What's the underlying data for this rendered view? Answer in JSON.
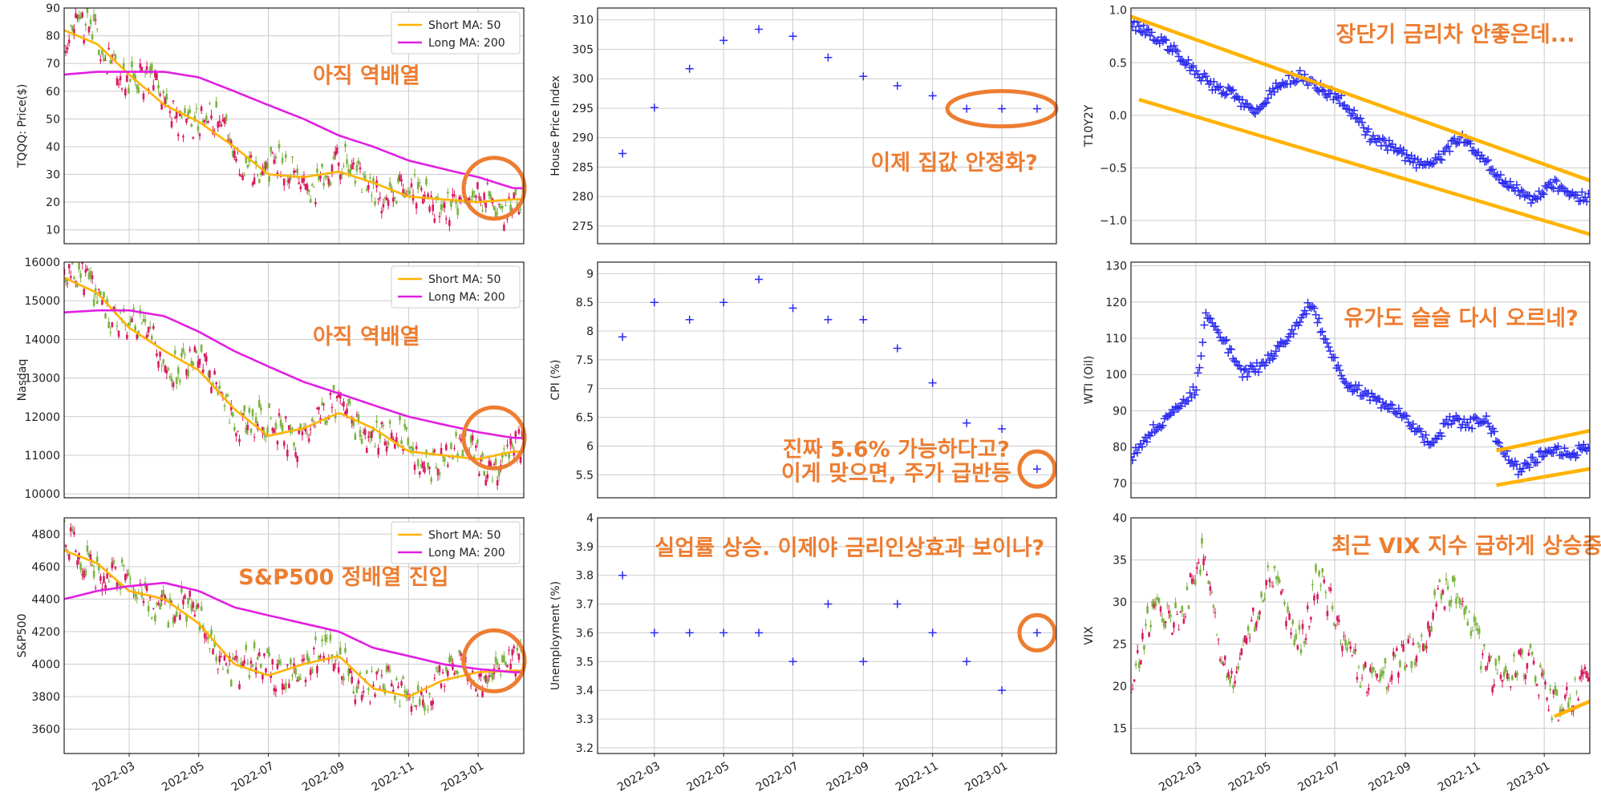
{
  "colors": {
    "short_ma": "#FFB300",
    "long_ma": "#E21FE2",
    "candle_up": "#7CB342",
    "candle_down": "#D81B60",
    "scatter": "#2B2BEF",
    "annotation": "#ED7D31",
    "channel": "#FFB300",
    "grid": "#cccccc"
  },
  "x_ticks": [
    "2022-03",
    "2022-05",
    "2022-07",
    "2022-09",
    "2022-11",
    "2023-01"
  ],
  "chart_data": [
    {
      "id": "tqqq",
      "type": "candlestick",
      "ylabel": "TQQQ: Price($)",
      "ylim": [
        5,
        90
      ],
      "yticks": [
        10,
        20,
        30,
        40,
        50,
        60,
        70,
        80,
        90
      ],
      "legend": [
        "Short MA: 50",
        "Long MA: 200"
      ],
      "annotation": "아직 역배열",
      "series": [
        {
          "name": "Short MA: 50",
          "x": [
            "2022-01-03",
            "2022-02-01",
            "2022-03-01",
            "2022-04-01",
            "2022-05-01",
            "2022-06-01",
            "2022-07-01",
            "2022-08-01",
            "2022-09-01",
            "2022-10-01",
            "2022-11-01",
            "2022-12-01",
            "2023-01-01",
            "2023-02-01"
          ],
          "values": [
            82,
            77,
            66,
            55,
            49,
            40,
            30,
            29,
            31,
            27,
            22,
            21,
            20,
            21
          ]
        },
        {
          "name": "Long MA: 200",
          "x": [
            "2022-01-03",
            "2022-02-01",
            "2022-03-01",
            "2022-04-01",
            "2022-05-01",
            "2022-06-01",
            "2022-07-01",
            "2022-08-01",
            "2022-09-01",
            "2022-10-01",
            "2022-11-01",
            "2022-12-01",
            "2023-01-01",
            "2023-02-01"
          ],
          "values": [
            66,
            67,
            67,
            67,
            65,
            60,
            55,
            50,
            44,
            40,
            35,
            32,
            29,
            25
          ]
        }
      ]
    },
    {
      "id": "nasdaq",
      "type": "candlestick",
      "ylabel": "Nasdaq",
      "ylim": [
        9900,
        16000
      ],
      "yticks": [
        10000,
        11000,
        12000,
        13000,
        14000,
        15000,
        16000
      ],
      "legend": [
        "Short MA: 50",
        "Long MA: 200"
      ],
      "annotation": "아직 역배열",
      "series": [
        {
          "name": "Short MA: 50",
          "x": [
            "2022-01-03",
            "2022-02-01",
            "2022-03-01",
            "2022-04-01",
            "2022-05-01",
            "2022-06-01",
            "2022-07-01",
            "2022-08-01",
            "2022-09-01",
            "2022-10-01",
            "2022-11-01",
            "2022-12-01",
            "2023-01-01",
            "2023-02-01"
          ],
          "values": [
            15600,
            15200,
            14300,
            13700,
            13200,
            12200,
            11500,
            11700,
            12100,
            11700,
            11100,
            11000,
            10900,
            11100
          ]
        },
        {
          "name": "Long MA: 200",
          "x": [
            "2022-01-03",
            "2022-02-01",
            "2022-03-01",
            "2022-04-01",
            "2022-05-01",
            "2022-06-01",
            "2022-07-01",
            "2022-08-01",
            "2022-09-01",
            "2022-10-01",
            "2022-11-01",
            "2022-12-01",
            "2023-01-01",
            "2023-02-01"
          ],
          "values": [
            14700,
            14750,
            14750,
            14600,
            14200,
            13700,
            13300,
            12900,
            12600,
            12300,
            12000,
            11800,
            11600,
            11450
          ]
        }
      ]
    },
    {
      "id": "sp500",
      "type": "candlestick",
      "ylabel": "S&P500",
      "ylim": [
        3450,
        4900
      ],
      "yticks": [
        3600,
        3800,
        4000,
        4200,
        4400,
        4600,
        4800
      ],
      "legend": [
        "Short MA: 50",
        "Long MA: 200"
      ],
      "annotation": "S&P500 정배열 진입",
      "series": [
        {
          "name": "Short MA: 50",
          "x": [
            "2022-01-03",
            "2022-02-01",
            "2022-03-01",
            "2022-04-01",
            "2022-05-01",
            "2022-06-01",
            "2022-07-01",
            "2022-08-01",
            "2022-09-01",
            "2022-10-01",
            "2022-11-01",
            "2022-12-01",
            "2023-01-01",
            "2023-02-01"
          ],
          "values": [
            4700,
            4620,
            4450,
            4400,
            4250,
            4000,
            3930,
            4000,
            4050,
            3850,
            3800,
            3900,
            3950,
            3960
          ]
        },
        {
          "name": "Long MA: 200",
          "x": [
            "2022-01-03",
            "2022-02-01",
            "2022-03-01",
            "2022-04-01",
            "2022-05-01",
            "2022-06-01",
            "2022-07-01",
            "2022-08-01",
            "2022-09-01",
            "2022-10-01",
            "2022-11-01",
            "2022-12-01",
            "2023-01-01",
            "2023-02-01"
          ],
          "values": [
            4400,
            4450,
            4480,
            4500,
            4450,
            4350,
            4300,
            4250,
            4200,
            4100,
            4050,
            4000,
            3970,
            3950
          ]
        }
      ]
    },
    {
      "id": "house_price",
      "type": "scatter",
      "ylabel": "House Price Index",
      "ylim": [
        272,
        312
      ],
      "yticks": [
        275,
        280,
        285,
        290,
        295,
        300,
        305,
        310
      ],
      "annotation": "이제 집값 안정화?",
      "x": [
        "2022-02-01",
        "2022-03-01",
        "2022-04-01",
        "2022-05-01",
        "2022-06-01",
        "2022-07-01",
        "2022-08-01",
        "2022-09-01",
        "2022-10-01",
        "2022-11-01",
        "2022-12-01",
        "2023-01-01",
        "2023-02-01"
      ],
      "values": [
        287.3,
        295.1,
        301.7,
        306.5,
        308.4,
        307.2,
        303.6,
        300.4,
        298.8,
        297.1,
        294.9,
        294.9,
        294.9
      ]
    },
    {
      "id": "cpi",
      "type": "scatter",
      "ylabel": "CPI (%)",
      "ylim": [
        5.1,
        9.2
      ],
      "yticks": [
        5.5,
        6.0,
        6.5,
        7.0,
        7.5,
        8.0,
        8.5,
        9.0
      ],
      "annotation": "진짜 5.6% 가능하다고?\n이게 맞으면, 주가 급반등",
      "x": [
        "2022-02-01",
        "2022-03-01",
        "2022-04-01",
        "2022-05-01",
        "2022-06-01",
        "2022-07-01",
        "2022-08-01",
        "2022-09-01",
        "2022-10-01",
        "2022-11-01",
        "2022-12-01",
        "2023-01-01",
        "2023-02-01"
      ],
      "values": [
        7.9,
        8.5,
        8.2,
        8.5,
        8.9,
        8.4,
        8.2,
        8.2,
        7.7,
        7.1,
        6.4,
        6.3,
        5.6
      ]
    },
    {
      "id": "unemployment",
      "type": "scatter",
      "ylabel": "Unemployment (%)",
      "ylim": [
        3.18,
        4.0
      ],
      "yticks": [
        3.2,
        3.3,
        3.4,
        3.5,
        3.6,
        3.7,
        3.8,
        3.9,
        4.0
      ],
      "annotation": "실업률 상승. 이제야 금리인상효과 보이나?",
      "x": [
        "2022-02-01",
        "2022-03-01",
        "2022-04-01",
        "2022-05-01",
        "2022-06-01",
        "2022-07-01",
        "2022-08-01",
        "2022-09-01",
        "2022-10-01",
        "2022-11-01",
        "2022-12-01",
        "2023-01-01",
        "2023-02-01"
      ],
      "values": [
        3.8,
        3.6,
        3.6,
        3.6,
        3.6,
        3.5,
        3.7,
        3.5,
        3.7,
        3.6,
        3.5,
        3.4,
        3.6
      ]
    },
    {
      "id": "t10y2y",
      "type": "scatter",
      "ylabel": "T10Y2Y",
      "ylim": [
        -1.22,
        1.02
      ],
      "yticks": [
        1.0,
        0.5,
        0.0,
        -0.5,
        -1.0
      ],
      "yticklabels": [
        "1.0",
        "0.5",
        "0.0",
        "−0.5",
        "−1.0"
      ],
      "annotation": "장단기 금리차 안좋은데...",
      "x": [
        "2022-01-03",
        "2022-01-20",
        "2022-02-10",
        "2022-03-01",
        "2022-03-20",
        "2022-04-01",
        "2022-04-20",
        "2022-05-10",
        "2022-06-01",
        "2022-06-20",
        "2022-07-10",
        "2022-08-01",
        "2022-08-20",
        "2022-09-10",
        "2022-10-01",
        "2022-10-20",
        "2022-11-10",
        "2022-12-01",
        "2022-12-20",
        "2023-01-10",
        "2023-02-01"
      ],
      "values": [
        0.88,
        0.78,
        0.62,
        0.42,
        0.25,
        0.22,
        0.02,
        0.27,
        0.38,
        0.25,
        0.12,
        -0.2,
        -0.3,
        -0.45,
        -0.4,
        -0.2,
        -0.45,
        -0.65,
        -0.8,
        -0.65,
        -0.78
      ]
    },
    {
      "id": "wti",
      "type": "scatter",
      "ylabel": "WTI (Oil)",
      "ylim": [
        66,
        131
      ],
      "yticks": [
        70,
        80,
        90,
        100,
        110,
        120,
        130
      ],
      "annotation": "유가도 슬슬 다시 오르네?",
      "x": [
        "2022-01-03",
        "2022-01-20",
        "2022-02-10",
        "2022-03-01",
        "2022-03-10",
        "2022-03-25",
        "2022-04-10",
        "2022-04-25",
        "2022-05-10",
        "2022-05-25",
        "2022-06-10",
        "2022-06-25",
        "2022-07-10",
        "2022-07-25",
        "2022-08-10",
        "2022-08-25",
        "2022-09-10",
        "2022-09-25",
        "2022-10-10",
        "2022-10-25",
        "2022-11-10",
        "2022-11-25",
        "2022-12-10",
        "2022-12-25",
        "2023-01-10",
        "2023-01-25",
        "2023-02-01"
      ],
      "values": [
        77,
        84,
        90,
        96,
        116,
        110,
        100,
        102,
        106,
        112,
        120,
        108,
        98,
        95,
        92,
        90,
        85,
        80,
        88,
        86,
        88,
        80,
        73,
        77,
        80,
        77,
        80
      ]
    },
    {
      "id": "vix",
      "type": "candlestick",
      "ylabel": "VIX",
      "ylim": [
        12,
        40
      ],
      "yticks": [
        15,
        20,
        25,
        30,
        35,
        40
      ],
      "annotation": "최근 VIX 지수 급하게 상승중",
      "x": [
        "2022-01-03",
        "2022-01-25",
        "2022-02-15",
        "2022-03-07",
        "2022-03-30",
        "2022-04-20",
        "2022-05-10",
        "2022-06-01",
        "2022-06-15",
        "2022-07-10",
        "2022-08-15",
        "2022-09-10",
        "2022-09-30",
        "2022-10-15",
        "2022-11-10",
        "2022-12-01",
        "2022-12-20",
        "2023-01-10",
        "2023-02-01"
      ],
      "values": [
        19,
        30,
        28,
        34,
        21,
        27,
        33,
        26,
        32,
        25,
        20,
        25,
        31,
        30,
        24,
        21,
        22,
        19,
        19
      ]
    }
  ]
}
